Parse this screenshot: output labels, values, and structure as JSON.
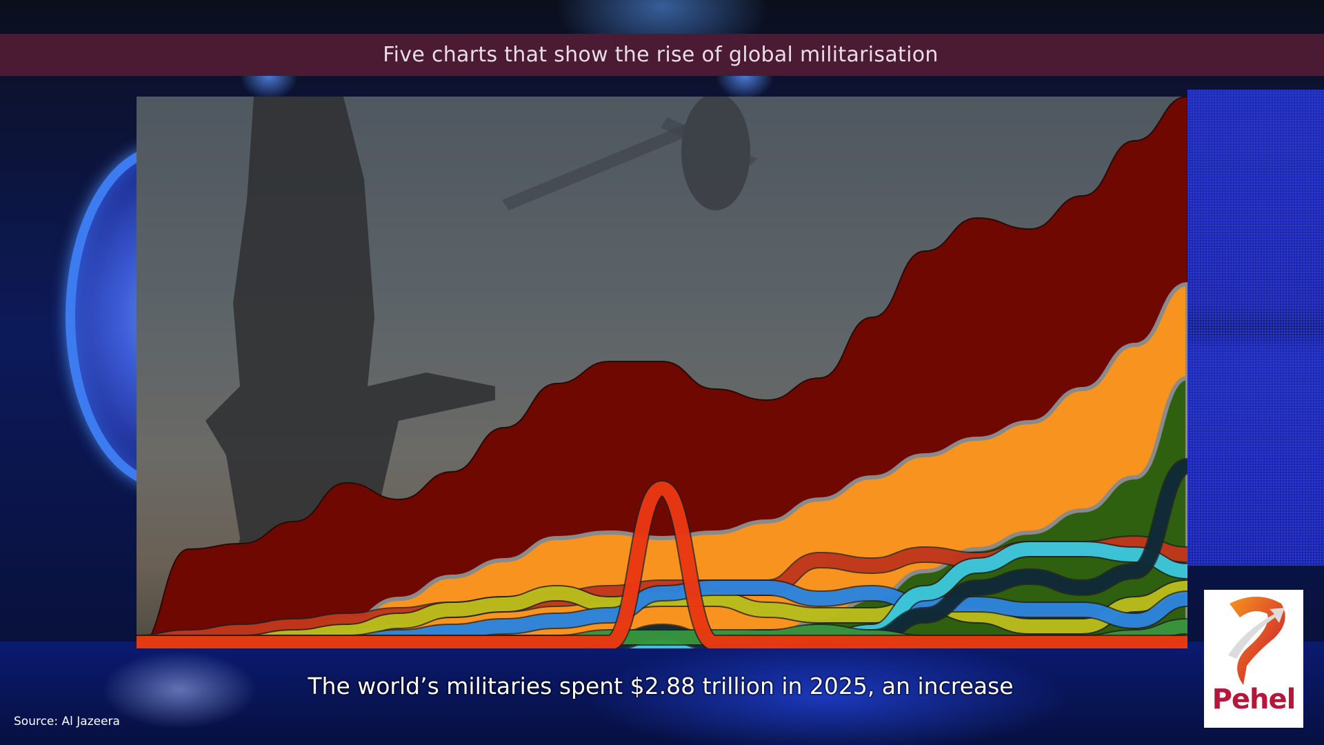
{
  "header": {
    "title": "Five charts that show the rise of global militarisation"
  },
  "caption": {
    "text": "The world’s militaries spent $2.88 trillion in 2025, an increase"
  },
  "source": {
    "text": "Source: Al Jazeera"
  },
  "logo": {
    "text": "Pehel",
    "icon": "pehel-arrow-icon",
    "color": "#b5173a"
  },
  "colors": {
    "title_bar": "#4b1a33",
    "title_text": "#e9dde6",
    "band_gray": "#8a8a8a"
  },
  "chart_data": {
    "type": "area",
    "title": "",
    "subtitle": "",
    "xlabel": "",
    "ylabel": "",
    "grid": false,
    "legend": "none",
    "description": "Stylized stacked/bump-style area chart of global military spending over time; no axis tick labels or legend are shown. Values below are relative heights (0-100) read from pixel positions at evenly spaced x positions across the chart width.",
    "x": [
      0,
      5,
      10,
      15,
      20,
      25,
      30,
      35,
      40,
      45,
      50,
      55,
      60,
      65,
      70,
      75,
      80,
      85,
      90,
      95,
      100
    ],
    "series": [
      {
        "name": "Top area (dark red)",
        "color": "#6e0800",
        "values": [
          0,
          18,
          19,
          23,
          30,
          27,
          32,
          40,
          48,
          52,
          52,
          47,
          45,
          49,
          60,
          72,
          78,
          76,
          82,
          92,
          100
        ]
      },
      {
        "name": "Orange band",
        "color": "#f7931e",
        "values": [
          0,
          0,
          1,
          3,
          5,
          9,
          13,
          16,
          20,
          21,
          20,
          21,
          23,
          27,
          31,
          35,
          38,
          41,
          47,
          55,
          66
        ]
      },
      {
        "name": "Dark green band",
        "color": "#2f6010",
        "values": [
          0,
          0,
          0,
          0,
          0,
          0,
          0,
          0,
          0,
          0,
          0,
          0,
          2,
          5,
          9,
          14,
          18,
          21,
          25,
          31,
          49
        ]
      },
      {
        "name": "Red ribbon",
        "color": "#d03a1a",
        "values": [
          0,
          1,
          2,
          3,
          4,
          5,
          6,
          7,
          8,
          9,
          10,
          10,
          10,
          15,
          14,
          16,
          15,
          17,
          17,
          18,
          16
        ]
      },
      {
        "name": "Yellow-green ribbon",
        "color": "#c8cc1a",
        "values": [
          0,
          0,
          0,
          1,
          2,
          4,
          6,
          7,
          9,
          7,
          8,
          8,
          6,
          5,
          5,
          7,
          5,
          3,
          3,
          7,
          10
        ]
      },
      {
        "name": "Blue ribbon",
        "color": "#2f8ef0",
        "values": [
          0,
          0,
          0,
          0,
          0,
          1,
          2,
          3,
          4,
          5,
          9,
          10,
          10,
          8,
          9,
          7,
          7,
          6,
          6,
          4,
          8
        ]
      },
      {
        "name": "Cyan ribbon",
        "color": "#3fd8ee",
        "values": [
          0,
          0,
          0,
          0,
          0,
          0,
          0,
          0,
          0,
          0,
          0,
          0,
          0,
          0,
          2,
          9,
          14,
          17,
          17,
          16,
          13
        ]
      },
      {
        "name": "Dark navy ribbon",
        "color": "#0e2a3a",
        "values": [
          0,
          0,
          0,
          0,
          0,
          0,
          0,
          0,
          0,
          0,
          2,
          0,
          1,
          0,
          1,
          5,
          10,
          12,
          10,
          13,
          32
        ]
      },
      {
        "name": "Green ribbon",
        "color": "#3aa040",
        "values": [
          0,
          0,
          0,
          0,
          0,
          0,
          0,
          0,
          0,
          1,
          1,
          1,
          1,
          2,
          1,
          0,
          0,
          0,
          0,
          1,
          3
        ]
      },
      {
        "name": "Spike (red/orange)",
        "color": "#ff3a10",
        "values": [
          0,
          0,
          0,
          0,
          0,
          0,
          0,
          0,
          0,
          0,
          28,
          0,
          0,
          0,
          0,
          0,
          0,
          0,
          0,
          0,
          0
        ]
      }
    ]
  }
}
